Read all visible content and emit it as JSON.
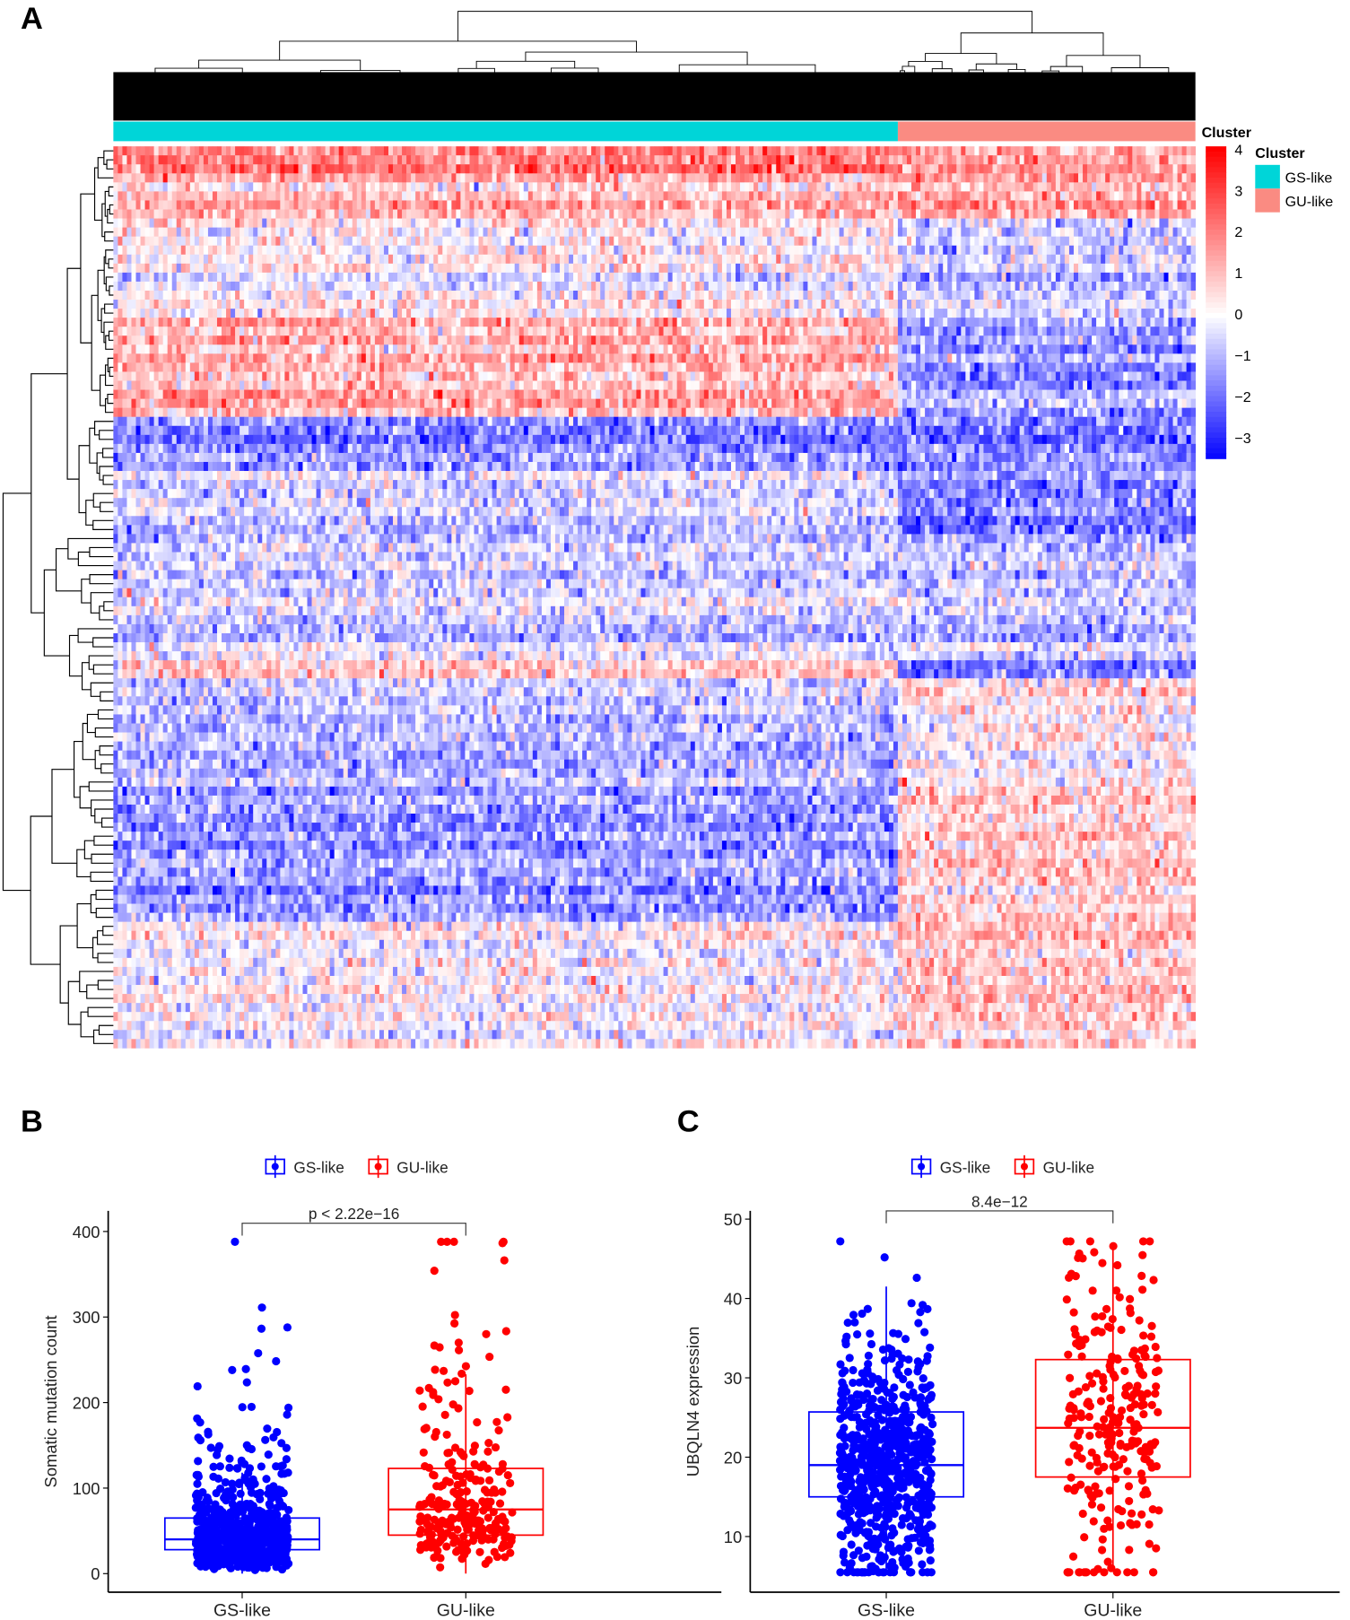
{
  "panel_labels": {
    "a": "A",
    "b": "B",
    "c": "C"
  },
  "colors": {
    "gs": "#0000ff",
    "gu": "#ff0000",
    "gs_annot": "#00d5d8",
    "gu_annot": "#fa8b82",
    "low": "#0000ff",
    "mid": "#ffffff",
    "high": "#ff0000"
  },
  "chart_data": [
    {
      "type": "heatmap",
      "title": "",
      "annotation_label": "Cluster",
      "legend_title": "Cluster",
      "legend_entries": [
        "GS-like",
        "GU-like"
      ],
      "colorbar_ticks": [
        "4",
        "3",
        "2",
        "1",
        "0",
        "−1",
        "−2",
        "−3"
      ],
      "colorbar_values": [
        4,
        3,
        2,
        1,
        0,
        -1,
        -2,
        -3
      ],
      "value_range": [
        -3.5,
        4
      ],
      "columns": {
        "GS-like": 174,
        "GU-like": 66
      },
      "row_blocks": [
        {
          "rows": 3,
          "gs_mean": 2.0,
          "gu_mean": 1.4
        },
        {
          "rows": 5,
          "gs_mean": 1.1,
          "gu_mean": 1.5
        },
        {
          "rows": 11,
          "gs_mean": 0.3,
          "gu_mean": -0.5
        },
        {
          "rows": 11,
          "gs_mean": 1.2,
          "gu_mean": -1.3
        },
        {
          "rows": 6,
          "gs_mean": -1.5,
          "gu_mean": -1.6
        },
        {
          "rows": 7,
          "gs_mean": -0.3,
          "gu_mean": -1.5
        },
        {
          "rows": 14,
          "gs_mean": -0.5,
          "gu_mean": -0.7
        },
        {
          "rows": 2,
          "gs_mean": 0.9,
          "gu_mean": -1.8
        },
        {
          "rows": 12,
          "gs_mean": -0.8,
          "gu_mean": 0.3
        },
        {
          "rows": 15,
          "gs_mean": -1.5,
          "gu_mean": 0.6
        },
        {
          "rows": 14,
          "gs_mean": 0.0,
          "gu_mean": 0.8
        }
      ]
    },
    {
      "type": "box",
      "legend": [
        "GS-like",
        "GU-like"
      ],
      "legend_placement": "top",
      "ylabel": "Somatic mutation count",
      "xlabel": "",
      "categories": [
        "GS-like",
        "GU-like"
      ],
      "yticks": [
        "0",
        "100",
        "200",
        "300",
        "400"
      ],
      "ytick_values": [
        0,
        100,
        200,
        300,
        400
      ],
      "ylim": [
        -20,
        425
      ],
      "pvalue": "p < 2.22e−16",
      "series": [
        {
          "name": "GS-like",
          "n": 700,
          "whisker_low": 0,
          "q1": 28,
          "median": 40,
          "q3": 65,
          "whisker_high": 118,
          "max": 388
        },
        {
          "name": "GU-like",
          "n": 260,
          "whisker_low": 0,
          "q1": 45,
          "median": 75,
          "q3": 123,
          "whisker_high": 233,
          "max": 388
        }
      ]
    },
    {
      "type": "box",
      "legend": [
        "GS-like",
        "GU-like"
      ],
      "legend_placement": "top",
      "ylabel": "UBQLN4 expression",
      "xlabel": "",
      "categories": [
        "GS-like",
        "GU-like"
      ],
      "yticks": [
        "10",
        "20",
        "30",
        "40",
        "50"
      ],
      "ytick_values": [
        10,
        20,
        30,
        40,
        50
      ],
      "ylim": [
        4,
        51
      ],
      "pvalue": "8.4e−12",
      "series": [
        {
          "name": "GS-like",
          "n": 700,
          "whisker_low": 5.5,
          "q1": 15,
          "median": 19,
          "q3": 25.7,
          "whisker_high": 41.5,
          "max": 47.2
        },
        {
          "name": "GU-like",
          "n": 260,
          "whisker_low": 6,
          "q1": 17.5,
          "median": 23.7,
          "q3": 32.3,
          "whisker_high": 47,
          "max": 47.2
        }
      ]
    }
  ]
}
